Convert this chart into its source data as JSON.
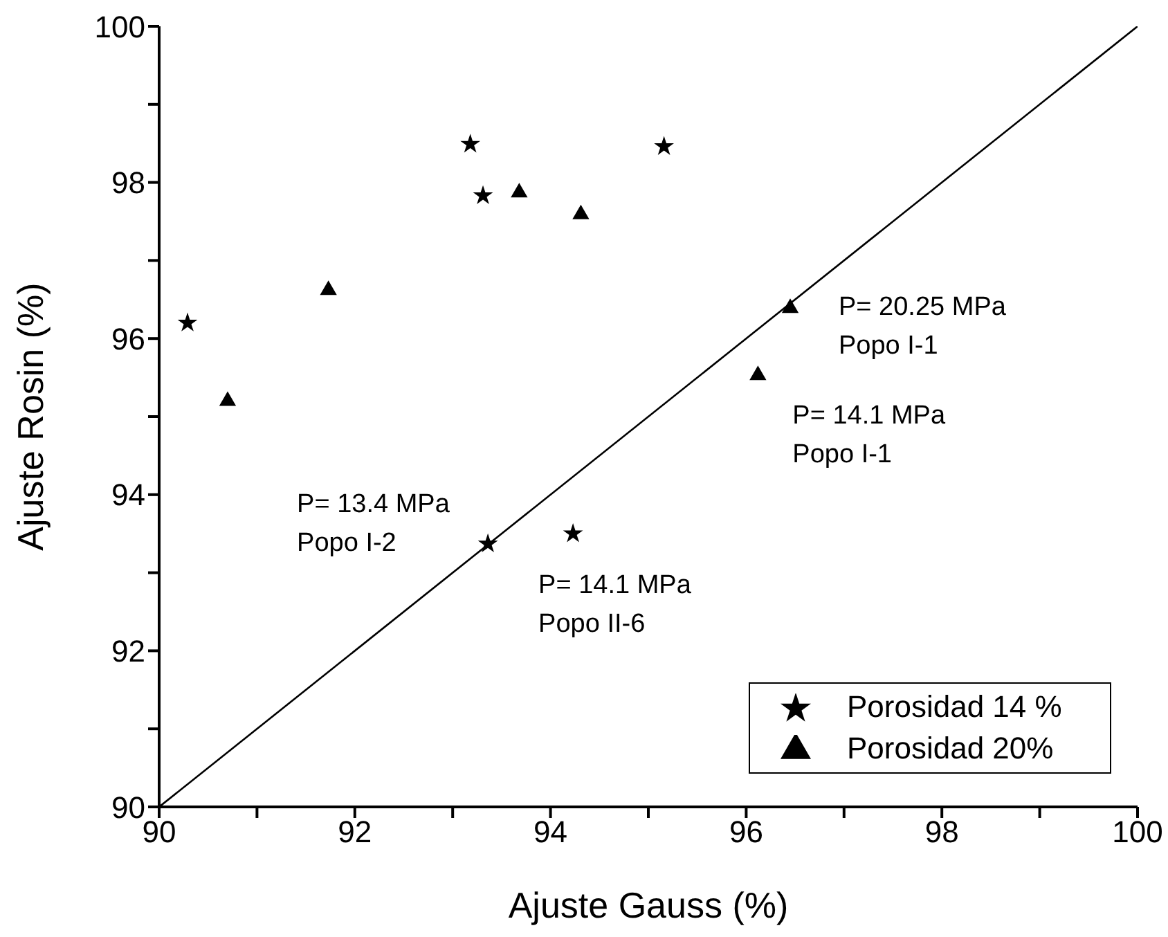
{
  "chart_data": {
    "type": "scatter",
    "xlabel": "Ajuste Gauss (%)",
    "ylabel": "Ajuste Rosin (%)",
    "xlim": [
      90,
      100
    ],
    "ylim": [
      90,
      100
    ],
    "xticks": [
      90,
      {
        "value": 91,
        "label": null
      },
      92,
      {
        "value": 93,
        "label": null
      },
      94,
      {
        "value": 95,
        "label": null
      },
      96,
      {
        "value": 97,
        "label": null
      },
      98,
      {
        "value": 99,
        "label": null
      },
      100
    ],
    "yticks": [
      90,
      {
        "value": 91,
        "label": null
      },
      92,
      {
        "value": 93,
        "label": null
      },
      94,
      {
        "value": 95,
        "label": null
      },
      96,
      {
        "value": 97,
        "label": null
      },
      98,
      {
        "value": 99,
        "label": null
      },
      100
    ],
    "grid": false,
    "legend": "bottom right",
    "series": [
      {
        "name": "Porosidad 14 %",
        "color": "#000000",
        "marker": "star",
        "x": [
          90.29,
          93.18,
          93.31,
          95.16,
          93.36,
          94.23
        ],
        "values": [
          96.2,
          98.49,
          97.83,
          98.46,
          93.37,
          93.5
        ]
      },
      {
        "name": "Porosidad 20%",
        "color": "#000000",
        "marker": "triangle",
        "x": [
          90.7,
          91.73,
          93.68,
          94.31,
          96.45,
          96.12
        ],
        "values": [
          95.2,
          96.62,
          97.87,
          97.59,
          96.39,
          95.53
        ]
      },
      {
        "type": "line",
        "color": "#000000",
        "marker": "none",
        "line_style": "solid",
        "x": [
          90,
          100
        ],
        "values": [
          90,
          100
        ]
      }
    ],
    "annotations": [
      {
        "text": "P= 20.25 MPa\nPopo I-1",
        "x": 96.45,
        "y": 96.39
      },
      {
        "text": "P= 14.1 MPa\nPopo I-1",
        "x": 96.12,
        "y": 95.53
      },
      {
        "text": "P= 13.4 MPa\nPopo I-2",
        "x": 93.36,
        "y": 93.37
      },
      {
        "text": "P= 14.1 MPa\nPopo II-6",
        "x": 94.23,
        "y": 93.5
      }
    ]
  }
}
